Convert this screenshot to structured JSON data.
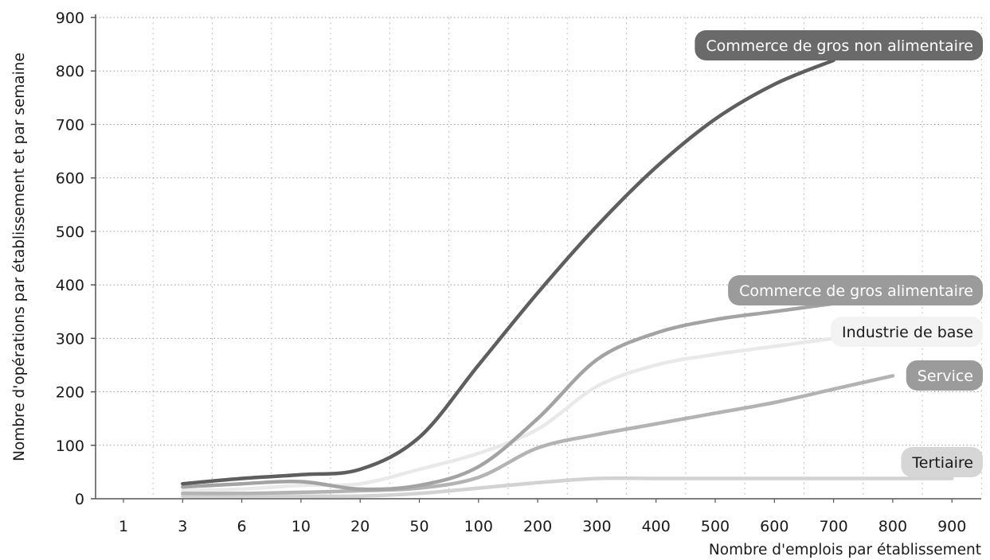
{
  "chart_data": {
    "type": "line",
    "xlabel": "Nombre d'emplois par établissement",
    "ylabel": "Nombre d'opérations par établissement et par semaine",
    "x_categories": [
      "1",
      "3",
      "6",
      "10",
      "20",
      "50",
      "100",
      "200",
      "300",
      "400",
      "500",
      "600",
      "700",
      "800",
      "900"
    ],
    "y_ticks": [
      0,
      100,
      200,
      300,
      400,
      500,
      600,
      700,
      800,
      900
    ],
    "ylim": [
      0,
      900
    ],
    "grid": "dotted",
    "legend": "inline labels at line ends",
    "series": [
      {
        "name": "Commerce de gros non alimentaire",
        "color": "#5e5e5e",
        "label_fill": "#6a6a6a",
        "label_text": "#ffffff",
        "x": [
          "3",
          "6",
          "10",
          "20",
          "50",
          "100",
          "200",
          "300",
          "400",
          "500",
          "600",
          "700"
        ],
        "values": [
          28,
          38,
          45,
          55,
          115,
          250,
          385,
          510,
          620,
          710,
          775,
          820
        ]
      },
      {
        "name": "Commerce de gros alimentaire",
        "color": "#a3a3a3",
        "label_fill": "#9b9b9b",
        "label_text": "#ffffff",
        "x": [
          "3",
          "6",
          "10",
          "20",
          "50",
          "100",
          "200",
          "300",
          "400",
          "500",
          "600",
          "700"
        ],
        "values": [
          22,
          28,
          32,
          18,
          25,
          60,
          150,
          260,
          310,
          335,
          350,
          365
        ]
      },
      {
        "name": "Industrie de base",
        "color": "#e9e9e9",
        "label_fill": "#f3f3f3",
        "label_text": "#1a1a1a",
        "x": [
          "3",
          "6",
          "10",
          "20",
          "50",
          "100",
          "200",
          "300",
          "400",
          "500",
          "600",
          "700"
        ],
        "values": [
          15,
          18,
          25,
          28,
          55,
          85,
          130,
          210,
          250,
          270,
          285,
          300
        ]
      },
      {
        "name": "Service",
        "color": "#b3b3b3",
        "label_fill": "#9b9b9b",
        "label_text": "#ffffff",
        "x": [
          "3",
          "6",
          "10",
          "20",
          "50",
          "100",
          "200",
          "300",
          "400",
          "500",
          "600",
          "700",
          "800"
        ],
        "values": [
          10,
          10,
          12,
          15,
          20,
          40,
          95,
          120,
          140,
          160,
          180,
          205,
          230
        ]
      },
      {
        "name": "Tertiaire",
        "color": "#d2d2d2",
        "label_fill": "#d6d6d6",
        "label_text": "#1a1a1a",
        "x": [
          "3",
          "6",
          "10",
          "20",
          "50",
          "100",
          "200",
          "300",
          "400",
          "500",
          "600",
          "700",
          "800",
          "900"
        ],
        "values": [
          5,
          5,
          5,
          5,
          10,
          20,
          30,
          38,
          38,
          38,
          38,
          38,
          38,
          38
        ]
      }
    ]
  }
}
